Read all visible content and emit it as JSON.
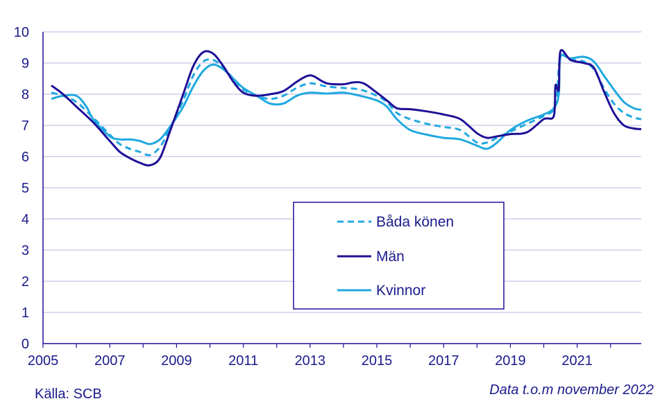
{
  "source": "Källa: SCB",
  "note": "Data t.o.m november 2022",
  "chart_data": {
    "type": "line",
    "title": "",
    "xlabel": "",
    "ylabel": "",
    "xlim": [
      2005.0,
      2022.92
    ],
    "ylim": [
      0,
      10
    ],
    "xticks": [
      2005,
      2007,
      2009,
      2011,
      2013,
      2015,
      2017,
      2019,
      2021
    ],
    "yticks": [
      0,
      1,
      2,
      3,
      4,
      5,
      6,
      7,
      8,
      9,
      10
    ],
    "grid": "horizontal",
    "legend_position": "center",
    "series": [
      {
        "name": "Båda könen",
        "color": "#1fa8e0",
        "dash": "dashed",
        "x": [
          2005.25,
          2005.6,
          2006.0,
          2006.5,
          2007.0,
          2007.3,
          2007.6,
          2007.9,
          2008.2,
          2008.5,
          2008.8,
          2009.2,
          2009.5,
          2009.8,
          2010.1,
          2010.4,
          2010.7,
          2011.0,
          2011.4,
          2011.8,
          2012.2,
          2012.6,
          2013.0,
          2013.5,
          2014.0,
          2014.5,
          2015.0,
          2015.3,
          2015.6,
          2016.0,
          2016.5,
          2017.0,
          2017.5,
          2018.0,
          2018.3,
          2018.6,
          2019.0,
          2019.5,
          2020.0,
          2020.3,
          2020.4,
          2020.5,
          2020.8,
          2021.2,
          2021.5,
          2021.8,
          2022.1,
          2022.4,
          2022.7,
          2022.92
        ],
        "y": [
          8.05,
          7.95,
          7.75,
          7.25,
          6.7,
          6.4,
          6.25,
          6.15,
          6.05,
          6.3,
          6.9,
          7.8,
          8.6,
          9.05,
          9.1,
          8.85,
          8.5,
          8.15,
          7.95,
          7.85,
          7.95,
          8.2,
          8.35,
          8.25,
          8.2,
          8.15,
          7.95,
          7.75,
          7.4,
          7.2,
          7.05,
          6.95,
          6.85,
          6.45,
          6.45,
          6.6,
          6.8,
          7.05,
          7.3,
          7.5,
          8.0,
          9.2,
          9.1,
          9.05,
          8.8,
          8.2,
          7.7,
          7.4,
          7.25,
          7.2
        ]
      },
      {
        "name": "Män",
        "color": "#1e0f96",
        "dash": "solid",
        "x": [
          2005.25,
          2005.6,
          2006.0,
          2006.5,
          2007.0,
          2007.3,
          2007.6,
          2007.9,
          2008.2,
          2008.5,
          2008.8,
          2009.2,
          2009.5,
          2009.8,
          2010.1,
          2010.4,
          2010.7,
          2011.0,
          2011.4,
          2011.8,
          2012.2,
          2012.6,
          2012.9,
          2013.1,
          2013.5,
          2014.0,
          2014.3,
          2014.6,
          2015.0,
          2015.3,
          2015.6,
          2016.0,
          2016.5,
          2017.0,
          2017.5,
          2018.0,
          2018.3,
          2018.6,
          2019.0,
          2019.5,
          2020.0,
          2020.3,
          2020.35,
          2020.45,
          2020.5,
          2020.8,
          2021.2,
          2021.5,
          2021.8,
          2022.1,
          2022.4,
          2022.7,
          2022.92
        ],
        "y": [
          8.28,
          8.0,
          7.6,
          7.1,
          6.5,
          6.15,
          5.95,
          5.8,
          5.72,
          5.95,
          6.8,
          8.0,
          8.9,
          9.35,
          9.3,
          8.9,
          8.4,
          8.05,
          7.95,
          8.0,
          8.1,
          8.4,
          8.58,
          8.58,
          8.35,
          8.32,
          8.38,
          8.35,
          8.05,
          7.8,
          7.55,
          7.52,
          7.45,
          7.35,
          7.2,
          6.75,
          6.6,
          6.65,
          6.72,
          6.78,
          7.2,
          7.3,
          8.28,
          8.15,
          9.38,
          9.1,
          9.0,
          8.85,
          8.1,
          7.4,
          7.0,
          6.9,
          6.88
        ]
      },
      {
        "name": "Kvinnor",
        "color": "#1fa8e0",
        "dash": "solid",
        "x": [
          2005.25,
          2005.6,
          2006.0,
          2006.3,
          2006.5,
          2007.0,
          2007.3,
          2007.6,
          2007.9,
          2008.2,
          2008.5,
          2008.8,
          2009.2,
          2009.5,
          2009.8,
          2010.1,
          2010.4,
          2010.7,
          2011.0,
          2011.4,
          2011.8,
          2012.2,
          2012.6,
          2013.0,
          2013.5,
          2014.0,
          2014.5,
          2015.0,
          2015.3,
          2015.6,
          2016.0,
          2016.5,
          2017.0,
          2017.5,
          2018.0,
          2018.3,
          2018.6,
          2019.0,
          2019.5,
          2020.0,
          2020.3,
          2020.45,
          2020.5,
          2020.8,
          2021.2,
          2021.5,
          2021.8,
          2022.1,
          2022.4,
          2022.7,
          2022.92
        ],
        "y": [
          7.85,
          7.95,
          7.95,
          7.6,
          7.2,
          6.65,
          6.55,
          6.55,
          6.5,
          6.4,
          6.55,
          6.95,
          7.6,
          8.25,
          8.75,
          8.95,
          8.8,
          8.5,
          8.2,
          7.95,
          7.7,
          7.7,
          7.95,
          8.05,
          8.02,
          8.05,
          7.95,
          7.8,
          7.6,
          7.2,
          6.85,
          6.7,
          6.6,
          6.55,
          6.35,
          6.25,
          6.45,
          6.85,
          7.15,
          7.35,
          7.55,
          8.0,
          9.2,
          9.15,
          9.2,
          9.05,
          8.6,
          8.15,
          7.75,
          7.55,
          7.5
        ]
      }
    ]
  }
}
